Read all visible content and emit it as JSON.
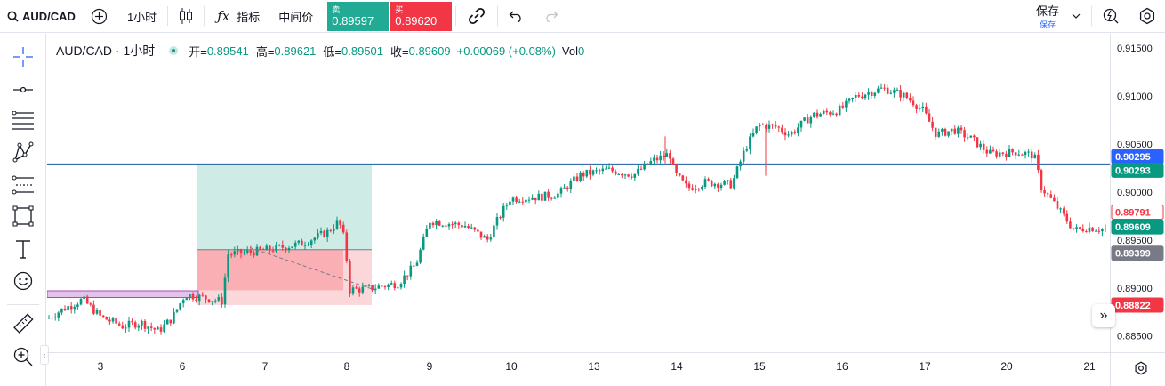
{
  "toolbar": {
    "symbol": "AUD/CAD",
    "interval": "1小时",
    "indicators_label": "指标",
    "mid_price_label": "中间价",
    "sell": {
      "label": "卖",
      "value": "0.89597"
    },
    "buy": {
      "label": "买",
      "value": "0.89620"
    },
    "save": {
      "label": "保存",
      "sublabel": "保存"
    }
  },
  "legend": {
    "title": "AUD/CAD · 1小时",
    "open_label": "开=",
    "open": "0.89541",
    "high_label": "高=",
    "high": "0.89621",
    "low_label": "低=",
    "low": "0.89501",
    "close_label": "收=",
    "close": "0.89609",
    "change": "+0.00069 (+0.08%)",
    "vol_label": "Vol",
    "vol": "0"
  },
  "price_axis": {
    "ticks": [
      "0.91500",
      "0.91000",
      "0.90500",
      "0.90000",
      "0.89500",
      "0.89000",
      "0.88500"
    ],
    "labels": [
      {
        "text": "0.90295",
        "price": 0.90295,
        "bg": "#2962ff",
        "fg": "#ffffff",
        "border": "#2962ff"
      },
      {
        "text": "0.90293",
        "price": 0.90293,
        "bg": "#089981",
        "fg": "#ffffff",
        "border": "#089981"
      },
      {
        "text": "0.89791",
        "price": 0.89791,
        "bg": "#ffffff",
        "fg": "#f23645",
        "border": "#f23645"
      },
      {
        "text": "0.89609",
        "price": 0.89609,
        "bg": "#089981",
        "fg": "#ffffff",
        "border": "#089981"
      },
      {
        "text": "0.89399",
        "price": 0.89399,
        "bg": "#787b86",
        "fg": "#ffffff",
        "border": "#787b86"
      },
      {
        "text": "0.88822",
        "price": 0.88822,
        "bg": "#f23645",
        "fg": "#ffffff",
        "border": "#f23645"
      }
    ]
  },
  "time_axis": [
    "3",
    "6",
    "7",
    "8",
    "9",
    "10",
    "13",
    "14",
    "15",
    "16",
    "17",
    "20",
    "21"
  ],
  "colors": {
    "up": "#089981",
    "down": "#f23645",
    "hline": "#2962ff",
    "purple": "#9c27b0"
  },
  "chart_data": {
    "type": "candlestick",
    "hline": 0.90293,
    "ylim": [
      0.8833,
      0.9165
    ],
    "position": {
      "entry": 0.89399,
      "target": 0.90293,
      "stop": 0.88822
    },
    "zone_price": [
      0.889,
      0.8897
    ],
    "x": [
      "3",
      "6",
      "7",
      "8",
      "9",
      "10",
      "13",
      "14",
      "15",
      "16",
      "17",
      "20",
      "21"
    ],
    "close": [
      0.8886,
      0.8898,
      0.8938,
      0.8902,
      0.8978,
      0.8999,
      0.9013,
      0.9005,
      0.9075,
      0.9108,
      0.9062,
      0.9035,
      0.8961
    ],
    "ticks_shown": [
      "0.91500",
      "0.91000",
      "0.90500",
      "0.90000",
      "0.89500",
      "0.89000",
      "0.88500"
    ]
  }
}
